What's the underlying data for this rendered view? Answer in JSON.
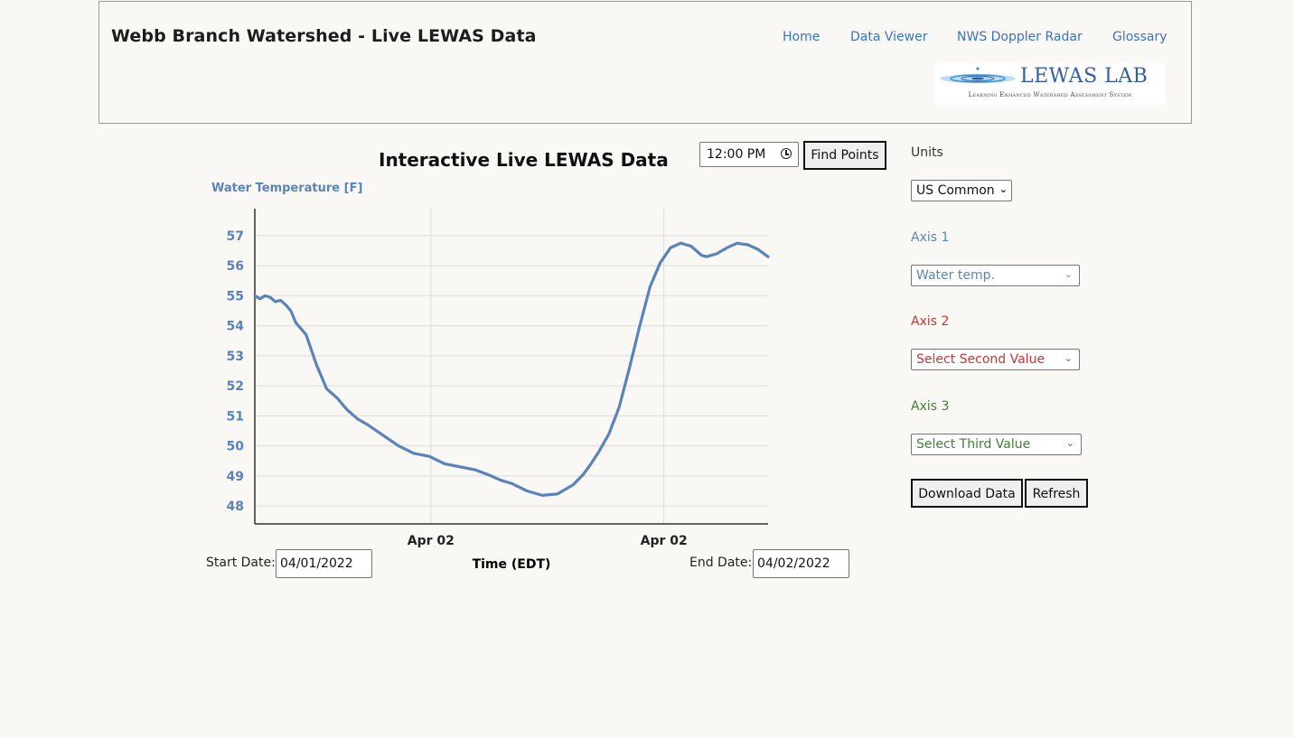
{
  "header": {
    "title": "Webb Branch Watershed - Live LEWAS Data",
    "nav": [
      "Home",
      "Data Viewer",
      "NWS Doppler Radar",
      "Glossary"
    ],
    "logo_text": "LEWAS LAB",
    "logo_subtitle": "Learning Enhanced Watershed Assessment System"
  },
  "controls": {
    "time_value": "12:00 PM",
    "find_points_label": "Find Points",
    "units_label": "Units",
    "units_value": "US Common",
    "axis1_label": "Axis 1",
    "axis1_value": "Water temp.",
    "axis2_label": "Axis 2",
    "axis2_value": "Select Second Value",
    "axis3_label": "Axis 3",
    "axis3_value": "Select Third Value",
    "download_label": "Download Data",
    "refresh_label": "Refresh",
    "start_date_label": "Start Date:",
    "start_date_value": "04/01/2022",
    "end_date_label": "End Date:",
    "end_date_value": "04/02/2022"
  },
  "colors": {
    "axis1": "#5b83b9",
    "axis2": "#cc3333",
    "axis3": "#3f7f33",
    "nav_link": "#3a72c4"
  },
  "chart_data": {
    "type": "line",
    "title": "Interactive Live LEWAS Data",
    "ylabel": "Water Temperature [F]",
    "xlabel": "Time (EDT)",
    "x_tick_labels": [
      "Apr 02",
      "Apr 02"
    ],
    "y_ticks": [
      48,
      49,
      50,
      51,
      52,
      53,
      54,
      55,
      56,
      57
    ],
    "ylim": [
      47.4,
      57.9
    ],
    "grid": true,
    "series": [
      {
        "color": "#5b83b9",
        "x": [
          0,
          0.01,
          0.02,
          0.03,
          0.04,
          0.05,
          0.06,
          0.07,
          0.08,
          0.1,
          0.12,
          0.14,
          0.16,
          0.18,
          0.2,
          0.22,
          0.25,
          0.28,
          0.31,
          0.34,
          0.37,
          0.4,
          0.43,
          0.46,
          0.48,
          0.5,
          0.53,
          0.56,
          0.59,
          0.62,
          0.64,
          0.655,
          0.67,
          0.69,
          0.71,
          0.73,
          0.75,
          0.77,
          0.79,
          0.81,
          0.83,
          0.85,
          0.87,
          0.88,
          0.9,
          0.92,
          0.94,
          0.95,
          0.96,
          0.98,
          1.0
        ],
        "values": [
          55.0,
          54.9,
          55.0,
          54.95,
          54.8,
          54.85,
          54.7,
          54.5,
          54.1,
          53.7,
          52.7,
          51.9,
          51.6,
          51.2,
          50.9,
          50.7,
          50.35,
          50.0,
          49.75,
          49.65,
          49.4,
          49.3,
          49.2,
          49.0,
          48.85,
          48.75,
          48.5,
          48.35,
          48.4,
          48.7,
          49.05,
          49.4,
          49.8,
          50.4,
          51.3,
          52.6,
          54.0,
          55.3,
          56.1,
          56.6,
          56.75,
          56.65,
          56.35,
          56.3,
          56.4,
          56.6,
          56.75,
          56.72,
          56.7,
          56.55,
          56.3
        ]
      }
    ]
  }
}
